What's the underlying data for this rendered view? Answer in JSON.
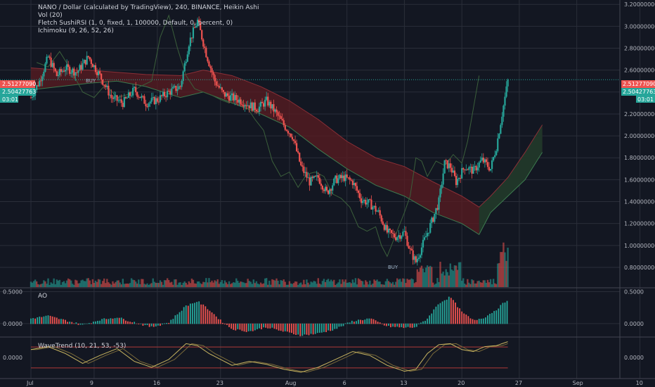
{
  "legend": {
    "line1": "NANO / Dollar (calculated by TradingView), 240, BINANCE, Heikin Ashi",
    "line2": "Vol (20)",
    "line3": "Fletch SushiRSI (1, 0, fixed, 1, 100000, Default, 0, percent, 0)",
    "line4": "Ichimoku (9, 26, 52, 26)"
  },
  "colors": {
    "background": "#131722",
    "up": "#26a69a",
    "down": "#ef5350",
    "grid": "#2a2e39",
    "text": "#b2b5be",
    "cloud_bear": "#5b1c22",
    "cloud_bull": "#1c3a2a",
    "wavetrend": "#c8b560"
  },
  "badges": {
    "last_price": "2.51277090",
    "close_price": "2.50427763",
    "countdown": "03:01"
  },
  "annotations": {
    "buy1": "BUY",
    "buy2": "BUY"
  },
  "panes": {
    "ao_title": "AO",
    "wavetrend_title": "WaveTrend (10, 21, 53, -53)"
  },
  "chart_data": [
    {
      "type": "candlestick",
      "title": "NANO / Dollar (calculated by TradingView), 240, BINANCE, Heikin Ashi",
      "x_ticks": [
        "Jul",
        "9",
        "16",
        "23",
        "Aug",
        "6",
        "13",
        "20",
        "27",
        "Sep",
        "10"
      ],
      "y_ticks": [
        "3.20000000",
        "3.00000000",
        "2.80000000",
        "2.60000000",
        "2.40000000",
        "2.20000000",
        "2.00000000",
        "1.80000000",
        "1.60000000",
        "1.40000000",
        "1.20000000",
        "1.00000000",
        "0.80000000"
      ],
      "ylim": [
        0.62,
        3.24
      ],
      "price_path": [
        [
          0,
          2.35
        ],
        [
          3,
          2.5
        ],
        [
          6,
          2.72
        ],
        [
          9,
          2.55
        ],
        [
          12,
          2.62
        ],
        [
          16,
          2.58
        ],
        [
          20,
          2.72
        ],
        [
          24,
          2.55
        ],
        [
          28,
          2.35
        ],
        [
          32,
          2.3
        ],
        [
          36,
          2.42
        ],
        [
          40,
          2.3
        ],
        [
          44,
          2.33
        ],
        [
          48,
          2.4
        ],
        [
          52,
          2.45
        ],
        [
          55,
          2.85
        ],
        [
          58,
          3.05
        ],
        [
          61,
          2.75
        ],
        [
          64,
          2.5
        ],
        [
          67,
          2.38
        ],
        [
          70,
          2.35
        ],
        [
          73,
          2.32
        ],
        [
          76,
          2.28
        ],
        [
          79,
          2.25
        ],
        [
          82,
          2.32
        ],
        [
          85,
          2.22
        ],
        [
          88,
          2.1
        ],
        [
          91,
          2.0
        ],
        [
          94,
          1.72
        ],
        [
          97,
          1.58
        ],
        [
          100,
          1.62
        ],
        [
          103,
          1.48
        ],
        [
          106,
          1.6
        ],
        [
          109,
          1.62
        ],
        [
          112,
          1.58
        ],
        [
          115,
          1.42
        ],
        [
          118,
          1.38
        ],
        [
          121,
          1.3
        ],
        [
          124,
          1.12
        ],
        [
          127,
          1.08
        ],
        [
          130,
          1.12
        ],
        [
          132,
          0.95
        ],
        [
          134,
          0.85
        ],
        [
          137,
          1.05
        ],
        [
          140,
          1.25
        ],
        [
          142,
          1.4
        ],
        [
          144,
          1.75
        ],
        [
          146,
          1.72
        ],
        [
          148,
          1.58
        ],
        [
          151,
          1.72
        ],
        [
          154,
          1.68
        ],
        [
          157,
          1.78
        ],
        [
          160,
          1.7
        ],
        [
          162,
          1.9
        ],
        [
          164,
          2.2
        ],
        [
          166,
          2.5
        ]
      ],
      "kumo_upper": [
        [
          0,
          2.62
        ],
        [
          10,
          2.6
        ],
        [
          20,
          2.6
        ],
        [
          30,
          2.58
        ],
        [
          40,
          2.56
        ],
        [
          52,
          2.55
        ],
        [
          60,
          2.6
        ],
        [
          70,
          2.55
        ],
        [
          80,
          2.45
        ],
        [
          90,
          2.32
        ],
        [
          100,
          2.15
        ],
        [
          110,
          1.95
        ],
        [
          120,
          1.8
        ],
        [
          130,
          1.72
        ],
        [
          140,
          1.58
        ],
        [
          150,
          1.45
        ],
        [
          156,
          1.35
        ],
        [
          160,
          1.45
        ],
        [
          166,
          1.62
        ],
        [
          172,
          1.85
        ],
        [
          178,
          2.1
        ]
      ],
      "kumo_lower": [
        [
          0,
          2.42
        ],
        [
          10,
          2.45
        ],
        [
          20,
          2.48
        ],
        [
          30,
          2.5
        ],
        [
          40,
          2.45
        ],
        [
          52,
          2.35
        ],
        [
          60,
          2.4
        ],
        [
          70,
          2.3
        ],
        [
          80,
          2.2
        ],
        [
          90,
          2.08
        ],
        [
          100,
          1.88
        ],
        [
          110,
          1.7
        ],
        [
          120,
          1.55
        ],
        [
          130,
          1.45
        ],
        [
          140,
          1.3
        ],
        [
          150,
          1.2
        ],
        [
          156,
          1.1
        ],
        [
          160,
          1.3
        ],
        [
          166,
          1.45
        ],
        [
          172,
          1.6
        ],
        [
          178,
          1.85
        ]
      ],
      "vol_ylim": [
        0,
        1
      ]
    },
    {
      "type": "bar",
      "title": "AO",
      "y_ticks": [
        "0.5000",
        "0.0000"
      ],
      "ylim": [
        -0.2,
        0.55
      ],
      "x": [
        0,
        6,
        12,
        18,
        24,
        30,
        36,
        42,
        48,
        54,
        58,
        62,
        66,
        70,
        76,
        82,
        88,
        94,
        100,
        106,
        112,
        118,
        124,
        130,
        134,
        138,
        142,
        146,
        150,
        154,
        158,
        162,
        166
      ],
      "values": [
        0.08,
        0.12,
        0.05,
        -0.02,
        0.06,
        0.1,
        0.02,
        -0.05,
        0.02,
        0.28,
        0.35,
        0.22,
        0.05,
        -0.08,
        -0.12,
        -0.05,
        -0.12,
        -0.18,
        -0.15,
        -0.08,
        0.04,
        0.08,
        -0.04,
        -0.06,
        -0.05,
        0.08,
        0.32,
        0.42,
        0.18,
        0.05,
        0.1,
        0.22,
        0.38
      ]
    },
    {
      "type": "line",
      "title": "WaveTrend (10, 21, 53, -53)",
      "y_ticks": [
        "0.0000"
      ],
      "ylim": [
        -100,
        100
      ],
      "levels": [
        53,
        -53
      ],
      "x": [
        0,
        6,
        12,
        18,
        24,
        30,
        36,
        42,
        48,
        54,
        58,
        62,
        66,
        70,
        76,
        82,
        88,
        94,
        100,
        106,
        112,
        118,
        124,
        130,
        134,
        138,
        142,
        146,
        150,
        154,
        158,
        162,
        166
      ],
      "values": [
        40,
        55,
        20,
        -30,
        10,
        45,
        -20,
        -50,
        -10,
        70,
        60,
        20,
        -10,
        -40,
        -20,
        -35,
        -60,
        -75,
        -50,
        -10,
        30,
        10,
        -40,
        -70,
        -60,
        20,
        65,
        70,
        40,
        30,
        55,
        60,
        80
      ]
    }
  ]
}
